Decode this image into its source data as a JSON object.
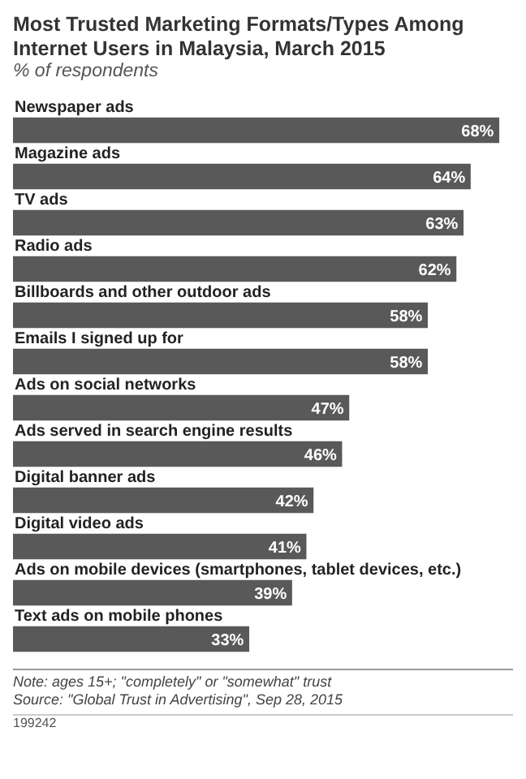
{
  "chart_data": {
    "type": "bar",
    "orientation": "horizontal",
    "title": "Most Trusted Marketing Formats/Types Among Internet Users in Malaysia, March 2015",
    "subtitle": "% of respondents",
    "categories": [
      "Newspaper ads",
      "Magazine ads",
      "TV ads",
      "Radio ads",
      "Billboards and other outdoor ads",
      "Emails I signed up for",
      "Ads on social networks",
      "Ads served in search engine results",
      "Digital banner ads",
      "Digital video ads",
      "Ads on mobile devices (smartphones, tablet devices, etc.)",
      "Text ads on mobile phones"
    ],
    "values": [
      68,
      64,
      63,
      62,
      58,
      58,
      47,
      46,
      42,
      41,
      39,
      33
    ],
    "value_labels": [
      "68%",
      "64%",
      "63%",
      "62%",
      "58%",
      "58%",
      "47%",
      "46%",
      "42%",
      "41%",
      "39%",
      "33%"
    ],
    "color": "#595959",
    "annotations": [
      "Note: ages 15+; \"completely\" or \"somewhat\" trust",
      "Source: \"Global Trust in Advertising\", Sep 28, 2015",
      "199242"
    ]
  }
}
